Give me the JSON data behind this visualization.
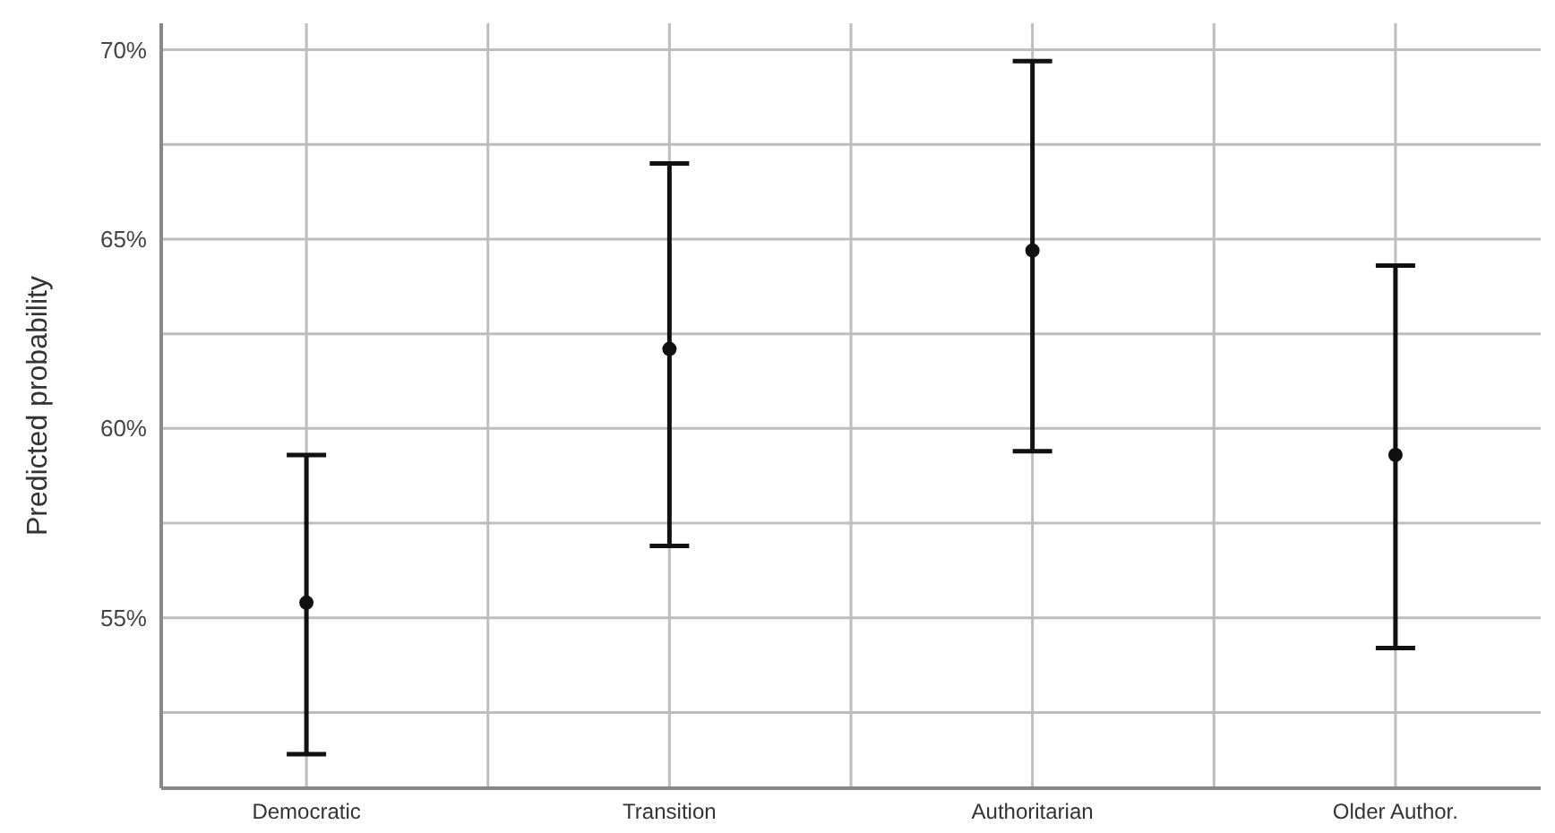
{
  "chart_data": {
    "type": "scatter",
    "ylabel": "Predicted probability",
    "categories": [
      "Democratic",
      "Transition",
      "Authoritarian",
      "Older Author."
    ],
    "values": [
      55.4,
      62.1,
      64.7,
      59.3
    ],
    "errors": [
      [
        51.4,
        59.3
      ],
      [
        56.9,
        67.0
      ],
      [
        59.4,
        69.7
      ],
      [
        54.2,
        64.3
      ]
    ],
    "color": "#111111",
    "marker": "circle",
    "ylim": [
      50.5,
      70.7
    ],
    "yticks": [
      {
        "value": 52.5,
        "label": null
      },
      {
        "value": 55,
        "label": "55%"
      },
      {
        "value": 57.5,
        "label": null
      },
      {
        "value": 60,
        "label": "60%"
      },
      {
        "value": 62.5,
        "label": null
      },
      {
        "value": 65,
        "label": "65%"
      },
      {
        "value": 67.5,
        "label": null
      },
      {
        "value": 70,
        "label": "70%"
      }
    ],
    "grid": true
  }
}
